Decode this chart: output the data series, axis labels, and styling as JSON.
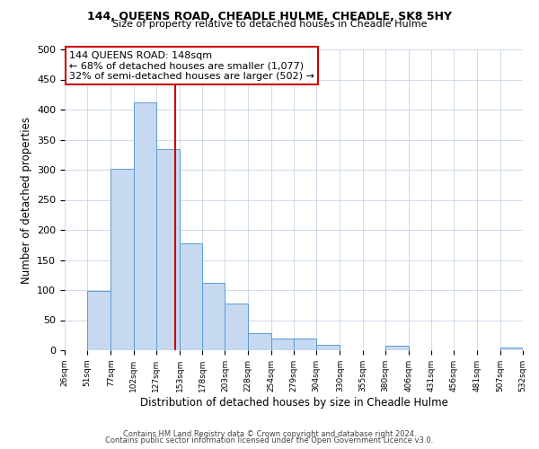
{
  "title": "144, QUEENS ROAD, CHEADLE HULME, CHEADLE, SK8 5HY",
  "subtitle": "Size of property relative to detached houses in Cheadle Hulme",
  "xlabel": "Distribution of detached houses by size in Cheadle Hulme",
  "ylabel": "Number of detached properties",
  "bar_edges": [
    26,
    51,
    77,
    102,
    127,
    153,
    178,
    203,
    228,
    254,
    279,
    304,
    330,
    355,
    380,
    406,
    431,
    456,
    481,
    507,
    532
  ],
  "bar_heights": [
    0,
    99,
    302,
    412,
    335,
    178,
    112,
    77,
    28,
    20,
    19,
    9,
    0,
    0,
    7,
    0,
    0,
    0,
    0,
    5
  ],
  "bar_color": "#c6d9f1",
  "bar_edge_color": "#5b9bd5",
  "vline_x": 148,
  "vline_color": "#cc0000",
  "annotation_title": "144 QUEENS ROAD: 148sqm",
  "annotation_line1": "← 68% of detached houses are smaller (1,077)",
  "annotation_line2": "32% of semi-detached houses are larger (502) →",
  "annotation_box_color": "#cc0000",
  "ylim": [
    0,
    500
  ],
  "yticks": [
    0,
    50,
    100,
    150,
    200,
    250,
    300,
    350,
    400,
    450,
    500
  ],
  "footer1": "Contains HM Land Registry data © Crown copyright and database right 2024.",
  "footer2": "Contains public sector information licensed under the Open Government Licence v3.0.",
  "bg_color": "#ffffff",
  "grid_color": "#c8d4e8"
}
